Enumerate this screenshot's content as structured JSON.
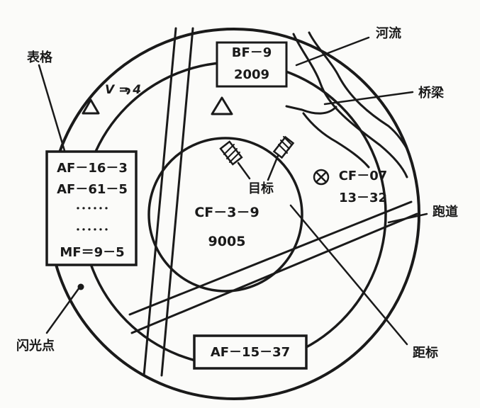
{
  "radar": {
    "speed_marker": "V = 4",
    "boxes": {
      "bf": [
        "BF－9",
        "2009"
      ],
      "bottom": "AF－15－37",
      "table_lines": [
        "AF－16－3",
        "AF－61－5",
        "･･････",
        "･･････",
        "MF＝9－5"
      ]
    },
    "center_labels": [
      "CF－3－9",
      "9005"
    ],
    "target_label": "目标",
    "cf07_labels": [
      "CF－07",
      "13－32"
    ]
  },
  "callouts": {
    "table": "表格",
    "river": "河流",
    "bridge": "桥梁",
    "runway": "跑道",
    "range": "距标",
    "flash": "闪光点"
  },
  "colors": {
    "ink": "#1a1a1a",
    "paper": "#fbfbf9"
  }
}
